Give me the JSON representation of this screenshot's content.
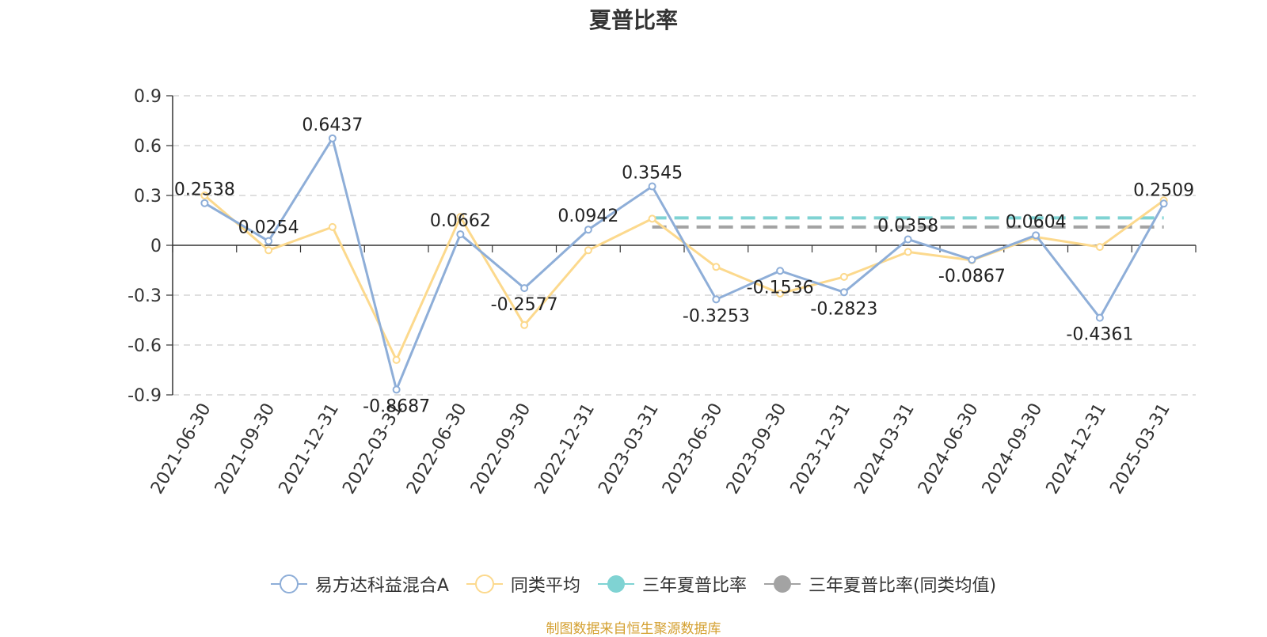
{
  "chart_data": {
    "type": "line",
    "title": "夏普比率",
    "categories": [
      "2021-06-30",
      "2021-09-30",
      "2021-12-31",
      "2022-03-31",
      "2022-06-30",
      "2022-09-30",
      "2022-12-31",
      "2023-03-31",
      "2023-06-30",
      "2023-09-30",
      "2023-12-31",
      "2024-03-31",
      "2024-06-30",
      "2024-09-30",
      "2024-12-31",
      "2025-03-31"
    ],
    "y_ticks": [
      "0.9",
      "0.6",
      "0.3",
      "0",
      "-0.3",
      "-0.6",
      "-0.9"
    ],
    "ylim": [
      -0.9,
      0.9
    ],
    "grid": true,
    "legend_position": "bottom",
    "series": [
      {
        "name": "易方达科益混合A",
        "color": "#8eaed8",
        "values": [
          0.2538,
          0.0254,
          0.6437,
          -0.8687,
          0.0662,
          -0.2577,
          0.0942,
          0.3545,
          -0.3253,
          -0.1536,
          -0.2823,
          0.0358,
          -0.0867,
          0.0604,
          -0.4361,
          0.2509
        ],
        "labels": [
          "0.2538",
          "0.0254",
          "0.6437",
          "-0.8687",
          "0.0662",
          "-0.2577",
          "0.0942",
          "0.3545",
          "-0.3253",
          "-0.1536",
          "-0.2823",
          "0.0358",
          "-0.0867",
          "0.0604",
          "-0.4361",
          "0.2509"
        ]
      },
      {
        "name": "同类平均",
        "color": "#fcd98d",
        "values": [
          0.3,
          -0.03,
          0.11,
          -0.69,
          0.17,
          -0.48,
          -0.03,
          0.16,
          -0.13,
          -0.29,
          -0.19,
          -0.04,
          -0.09,
          0.05,
          -0.01,
          0.27
        ]
      },
      {
        "name": "三年夏普比率",
        "color": "#7fd3d3",
        "type": "dashed-reference",
        "value": 0.165,
        "x_start": "2023-03-31",
        "x_end": "2025-03-31"
      },
      {
        "name": "三年夏普比率(同类均值)",
        "color": "#a3a3a3",
        "type": "dashed-reference",
        "value": 0.11,
        "x_start": "2023-03-31",
        "x_end": "2025-03-31"
      }
    ]
  },
  "source_note": "制图数据来自恒生聚源数据库",
  "source_color": "#d4a030"
}
